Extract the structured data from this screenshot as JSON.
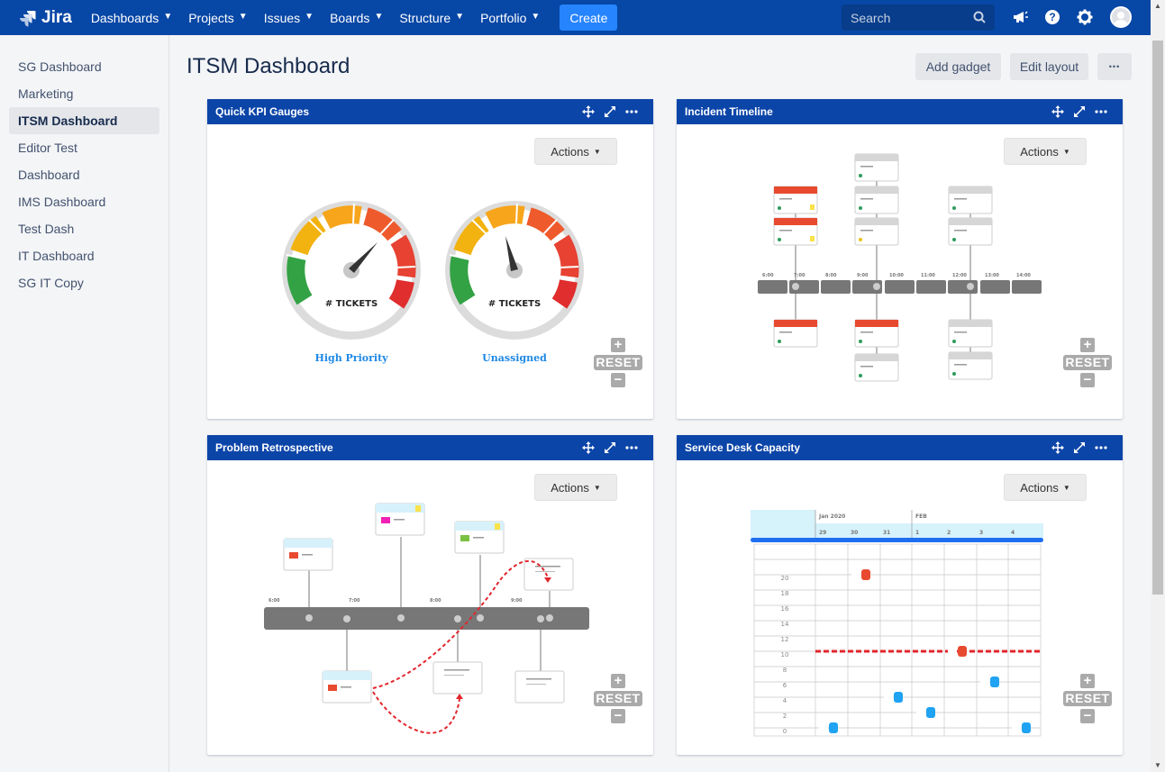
{
  "nav": {
    "logo": "Jira",
    "items": [
      {
        "label": "Dashboards"
      },
      {
        "label": "Projects"
      },
      {
        "label": "Issues"
      },
      {
        "label": "Boards"
      },
      {
        "label": "Structure"
      },
      {
        "label": "Portfolio"
      }
    ],
    "create": "Create",
    "search_placeholder": "Search"
  },
  "sidebar": {
    "items": [
      {
        "label": "SG Dashboard"
      },
      {
        "label": "Marketing"
      },
      {
        "label": "ITSM Dashboard",
        "active": true
      },
      {
        "label": "Editor Test"
      },
      {
        "label": "Dashboard"
      },
      {
        "label": "IMS Dashboard"
      },
      {
        "label": "Test Dash"
      },
      {
        "label": "IT Dashboard"
      },
      {
        "label": "SG IT Copy"
      }
    ]
  },
  "page": {
    "title": "ITSM Dashboard",
    "add_gadget": "Add gadget",
    "edit_layout": "Edit layout",
    "more": "•••"
  },
  "gadgets": {
    "kpi": {
      "title": "Quick KPI Gauges",
      "actions": "Actions",
      "reset": "RESET",
      "gauges": [
        {
          "label": "# TICKETS",
          "caption": "High Priority"
        },
        {
          "label": "# TICKETS",
          "caption": "Unassigned"
        }
      ]
    },
    "incident": {
      "title": "Incident Timeline",
      "actions": "Actions",
      "reset": "RESET",
      "times": [
        "6:00",
        "7:00",
        "8:00",
        "9:00",
        "10:00",
        "11:00",
        "12:00",
        "13:00",
        "14:00"
      ]
    },
    "problem": {
      "title": "Problem Retrospective",
      "actions": "Actions",
      "reset": "RESET",
      "times": [
        "6:00",
        "7:00",
        "8:00",
        "9:00"
      ]
    },
    "capacity": {
      "title": "Service Desk Capacity",
      "actions": "Actions",
      "reset": "RESET",
      "months": [
        "Jan 2020",
        "FEB"
      ],
      "days": [
        "29",
        "30",
        "31",
        "1",
        "2",
        "3",
        "4"
      ],
      "yaxis": [
        "20",
        "18",
        "16",
        "14",
        "12",
        "10",
        "8",
        "6",
        "4",
        "2",
        "0"
      ]
    }
  },
  "colors": {
    "nav": "#0747a6",
    "gadget_header": "#0c45a8",
    "create": "#2684ff",
    "danger": "#e34935",
    "info": "#1fa3f2"
  }
}
